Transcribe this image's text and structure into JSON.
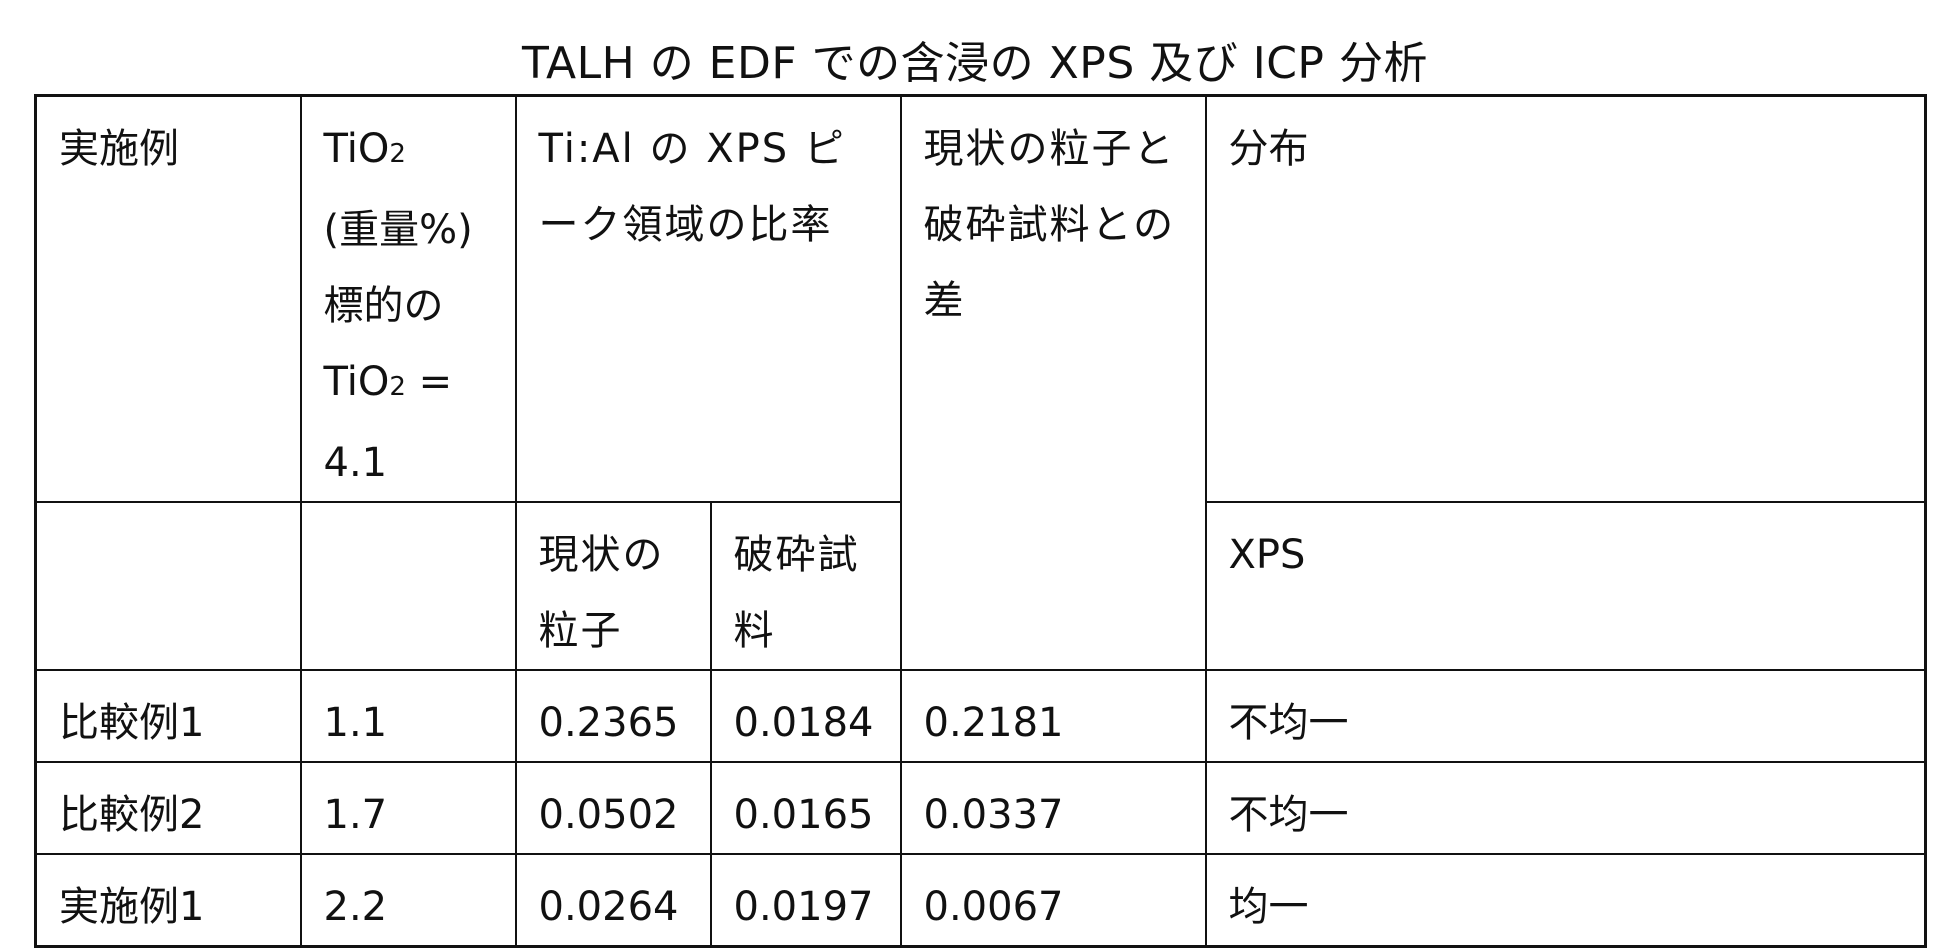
{
  "title": "TALH の EDF での含浸の XPS 及び ICP 分析",
  "header": {
    "example_col": "実施例",
    "tio2_col": {
      "line1_main": "TiO",
      "line1_sub": "2",
      "line2": "(重量%)",
      "line3": "標的の",
      "line4_main": "TiO",
      "line4_sub": "2",
      "line4_suffix": " =",
      "line5": "4.1"
    },
    "xps_ratio_col": "Ti:Al の XPS ピーク領域の比率",
    "difference_col": "現状の粒子と破砕試料との差",
    "distribution_col": "分布"
  },
  "subheader": {
    "as_is_particle": "現状の粒子",
    "crushed_sample": "破砕試料",
    "distribution_method": "XPS"
  },
  "rows": [
    {
      "example": "比較例1",
      "tio2": "1.1",
      "as_is": "0.2365",
      "crushed": "0.0184",
      "difference": "0.2181",
      "distribution": "不均一"
    },
    {
      "example": "比較例2",
      "tio2": "1.7",
      "as_is": "0.0502",
      "crushed": "0.0165",
      "difference": "0.0337",
      "distribution": "不均一"
    },
    {
      "example": "実施例1",
      "tio2": "2.2",
      "as_is": "0.0264",
      "crushed": "0.0197",
      "difference": "0.0067",
      "distribution": "均一"
    }
  ]
}
